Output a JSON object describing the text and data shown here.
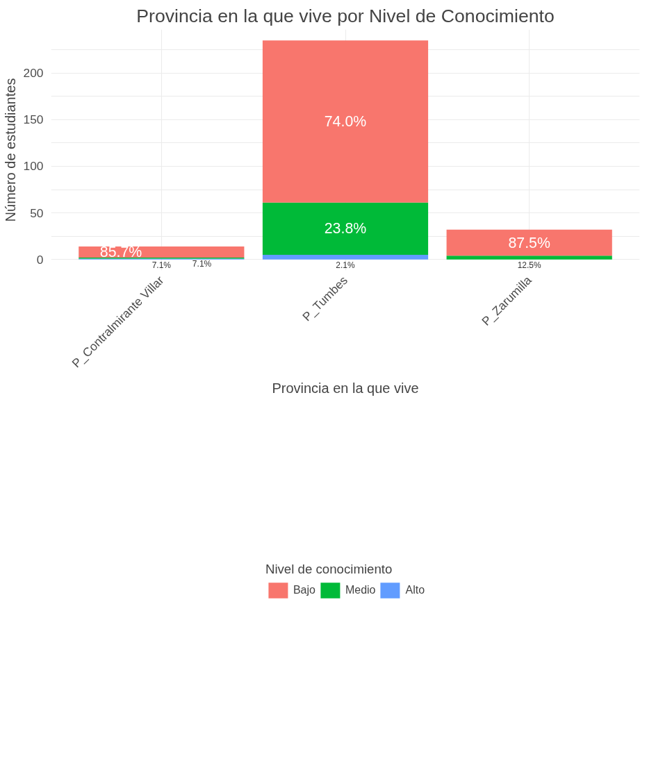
{
  "chart_data": {
    "type": "bar",
    "title": "Provincia en la que vive por Nivel de Conocimiento",
    "xlabel": "Provincia en la que vive",
    "ylabel": "Número de estudiantes",
    "legend_title": "Nivel de conocimiento",
    "categories": [
      "P_Contralmirante Villar",
      "P_Tumbes",
      "P_Zarumilla"
    ],
    "stacked": true,
    "series": [
      {
        "name": "Alto",
        "color": "#619cff",
        "values": [
          1,
          5,
          null
        ]
      },
      {
        "name": "Medio",
        "color": "#00ba38",
        "values": [
          1,
          56,
          4
        ]
      },
      {
        "name": "Bajo",
        "color": "#f8766d",
        "values": [
          12,
          174,
          28
        ]
      }
    ],
    "annotations": [
      "7.1%",
      "2.1%",
      "7.1%",
      "23.8%",
      "12.5%",
      "85.7%",
      "74.0%",
      "87.5%"
    ],
    "ylim": [
      -11.75,
      246.75
    ],
    "yticks": [
      0,
      {
        "value": 25,
        "label": null
      },
      50,
      {
        "value": 75,
        "label": null
      },
      100,
      {
        "value": 125,
        "label": null
      },
      150,
      {
        "value": 175,
        "label": null
      },
      200,
      {
        "value": 225,
        "label": null
      }
    ],
    "grid": true,
    "legend": "bottom"
  }
}
